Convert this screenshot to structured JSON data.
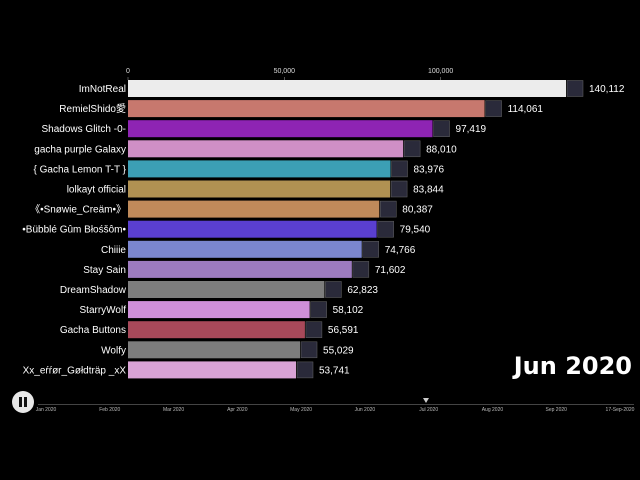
{
  "chart_data": {
    "type": "bar",
    "orientation": "horizontal",
    "categories": [
      "ImNotReal",
      "RemielShido愛",
      "Shadows Glitch -0-",
      "gacha purple Galaxy",
      "{ Gacha Lemon T-T }",
      "lolkayt official",
      "《•Snøwie_Creäm•》",
      "•Bübblé Gûm Błośšôm•",
      "Chiiie",
      "Stay Sain",
      "DreamShadow",
      "StarryWolf",
      "Gacha Buttons",
      "Wolfy",
      "Xx_eŕŕør_Gøłdträp _xX"
    ],
    "values": [
      140112,
      114061,
      97419,
      88010,
      83976,
      83844,
      80387,
      79540,
      74766,
      71602,
      62823,
      58102,
      56591,
      55029,
      53741
    ],
    "value_labels": [
      "140,112",
      "114,061",
      "97,419",
      "88,010",
      "83,976",
      "83,844",
      "80,387",
      "79,540",
      "74,766",
      "71,602",
      "62,823",
      "58,102",
      "56,591",
      "55,029",
      "53,741"
    ],
    "bar_colors": [
      "#ececec",
      "#c7786e",
      "#8e24b3",
      "#cf8fc6",
      "#3c9fb5",
      "#b09152",
      "#c08a5a",
      "#5a3fd0",
      "#7b86cf",
      "#9d7bbf",
      "#7d7d7d",
      "#cf8fd9",
      "#a8495a",
      "#7c7c7c",
      "#d9a3d6"
    ],
    "xticks": [
      0,
      50000,
      100000
    ],
    "xtick_labels": [
      "0",
      "50,000",
      "100,000"
    ],
    "xlim": [
      0,
      140112
    ],
    "title": "",
    "xlabel": "",
    "ylabel": "",
    "grid": false,
    "legend": "none"
  },
  "date_label": "Jun 2020",
  "timeline": {
    "ticks": [
      "Jan 2020",
      "Feb 2020",
      "Mar 2020",
      "Apr 2020",
      "May 2020",
      "Jun 2020",
      "Jul 2020",
      "Aug 2020",
      "Sep 2020",
      "17-Sep-2020"
    ],
    "progress": 0.65
  },
  "colors": {
    "background": "#000000",
    "text": "#ffffff"
  }
}
